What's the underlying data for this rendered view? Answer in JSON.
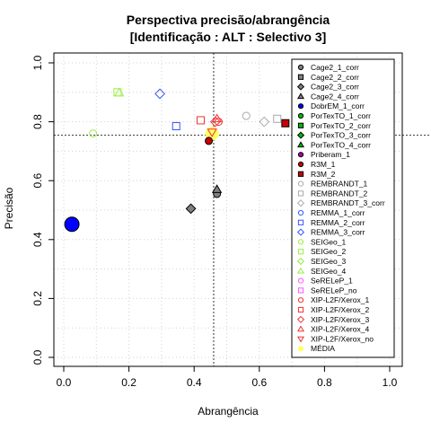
{
  "chart_data": {
    "type": "scatter",
    "title": "Perspectiva precisão/abrangência",
    "subtitle": "[Identificação : ALT : Selectivo 3]",
    "xlabel": "Abrangência",
    "ylabel": "Precisão",
    "xlim": [
      0,
      1
    ],
    "ylim": [
      0,
      1
    ],
    "x_ticks": [
      "0.0",
      "0.2",
      "0.4",
      "0.6",
      "0.8",
      "1.0"
    ],
    "y_ticks": [
      "0.0",
      "0.2",
      "0.4",
      "0.6",
      "0.8",
      "1.0"
    ],
    "grid": true,
    "legend_position": "right",
    "reference_lines": {
      "x": 0.46,
      "y": 0.755
    },
    "series": [
      {
        "name": "Cage2_1_corr",
        "marker": "circle-filled",
        "color": "#808080",
        "points": [
          [
            0.47,
            0.555
          ]
        ]
      },
      {
        "name": "Cage2_2_corr",
        "marker": "square-filled",
        "color": "#808080",
        "points": []
      },
      {
        "name": "Cage2_3_corr",
        "marker": "diamond-filled",
        "color": "#808080",
        "points": [
          [
            0.39,
            0.505
          ]
        ]
      },
      {
        "name": "Cage2_4_corr",
        "marker": "triangle-filled",
        "color": "#808080",
        "points": [
          [
            0.47,
            0.57
          ]
        ]
      },
      {
        "name": "DobrEM_1_corr",
        "marker": "circle-filled",
        "color": "#0000ff",
        "points": [
          [
            0.025,
            0.452
          ]
        ]
      },
      {
        "name": "PorTexTO_1_corr",
        "marker": "circle-filled",
        "color": "#00bb00",
        "points": []
      },
      {
        "name": "PorTexTO_2_corr",
        "marker": "square-filled",
        "color": "#00bb00",
        "points": []
      },
      {
        "name": "PorTexTO_3_corr",
        "marker": "diamond-filled",
        "color": "#00bb00",
        "points": []
      },
      {
        "name": "PorTexTO_4_corr",
        "marker": "triangle-filled",
        "color": "#00bb00",
        "points": []
      },
      {
        "name": "Priberam_1",
        "marker": "circle-filled",
        "color": "#aa00aa",
        "points": []
      },
      {
        "name": "R3M_1",
        "marker": "circle-filled",
        "color": "#cc0000",
        "points": [
          [
            0.445,
            0.735
          ]
        ]
      },
      {
        "name": "R3M_2",
        "marker": "square-filled",
        "color": "#cc0000",
        "points": [
          [
            0.68,
            0.795
          ]
        ]
      },
      {
        "name": "REMBRANDT_1",
        "marker": "circle-open",
        "color": "#aaaaaa",
        "points": [
          [
            0.56,
            0.82
          ]
        ]
      },
      {
        "name": "REMBRANDT_2",
        "marker": "square-open",
        "color": "#aaaaaa",
        "points": [
          [
            0.655,
            0.81
          ]
        ]
      },
      {
        "name": "REMBRANDT_3_corr",
        "marker": "diamond-open",
        "color": "#aaaaaa",
        "points": [
          [
            0.615,
            0.8
          ]
        ]
      },
      {
        "name": "REMMA_1_corr",
        "marker": "circle-open",
        "color": "#3355ff",
        "points": []
      },
      {
        "name": "REMMA_2_corr",
        "marker": "square-open",
        "color": "#3355ff",
        "points": [
          [
            0.345,
            0.785
          ]
        ]
      },
      {
        "name": "REMMA_3_corr",
        "marker": "diamond-open",
        "color": "#3355ff",
        "points": [
          [
            0.295,
            0.895
          ]
        ]
      },
      {
        "name": "SEIGeo_1",
        "marker": "circle-open",
        "color": "#99ee44",
        "points": [
          [
            0.09,
            0.76
          ]
        ]
      },
      {
        "name": "SEIGeo_2",
        "marker": "square-open",
        "color": "#99ee44",
        "points": [
          [
            0.165,
            0.9
          ]
        ]
      },
      {
        "name": "SEIGeo_3",
        "marker": "diamond-open",
        "color": "#99ee44",
        "points": []
      },
      {
        "name": "SEIGeo_4",
        "marker": "triangle-open",
        "color": "#99ee44",
        "points": [
          [
            0.17,
            0.898
          ]
        ]
      },
      {
        "name": "SeRELeP_1",
        "marker": "circle-open",
        "color": "#ff55ff",
        "points": []
      },
      {
        "name": "SeRELeP_no",
        "marker": "square-open",
        "color": "#ff55ff",
        "points": []
      },
      {
        "name": "XIP-L2F/Xerox_1",
        "marker": "circle-open",
        "color": "#ee3333",
        "points": [
          [
            0.475,
            0.8
          ]
        ]
      },
      {
        "name": "XIP-L2F/Xerox_2",
        "marker": "square-open",
        "color": "#ee3333",
        "points": [
          [
            0.42,
            0.805
          ]
        ]
      },
      {
        "name": "XIP-L2F/Xerox_3",
        "marker": "diamond-open",
        "color": "#ee3333",
        "points": [
          [
            0.465,
            0.8
          ]
        ]
      },
      {
        "name": "XIP-L2F/Xerox_4",
        "marker": "triangle-open",
        "color": "#ee3333",
        "points": [
          [
            0.47,
            0.81
          ]
        ]
      },
      {
        "name": "XIP-L2F/Xerox_no",
        "marker": "triangle-down-open",
        "color": "#ee3333",
        "points": [
          [
            0.455,
            0.765
          ]
        ]
      },
      {
        "name": "MÉDIA",
        "marker": "circle-filled",
        "color": "#ffff66",
        "points": [
          [
            0.455,
            0.76
          ]
        ]
      }
    ]
  }
}
